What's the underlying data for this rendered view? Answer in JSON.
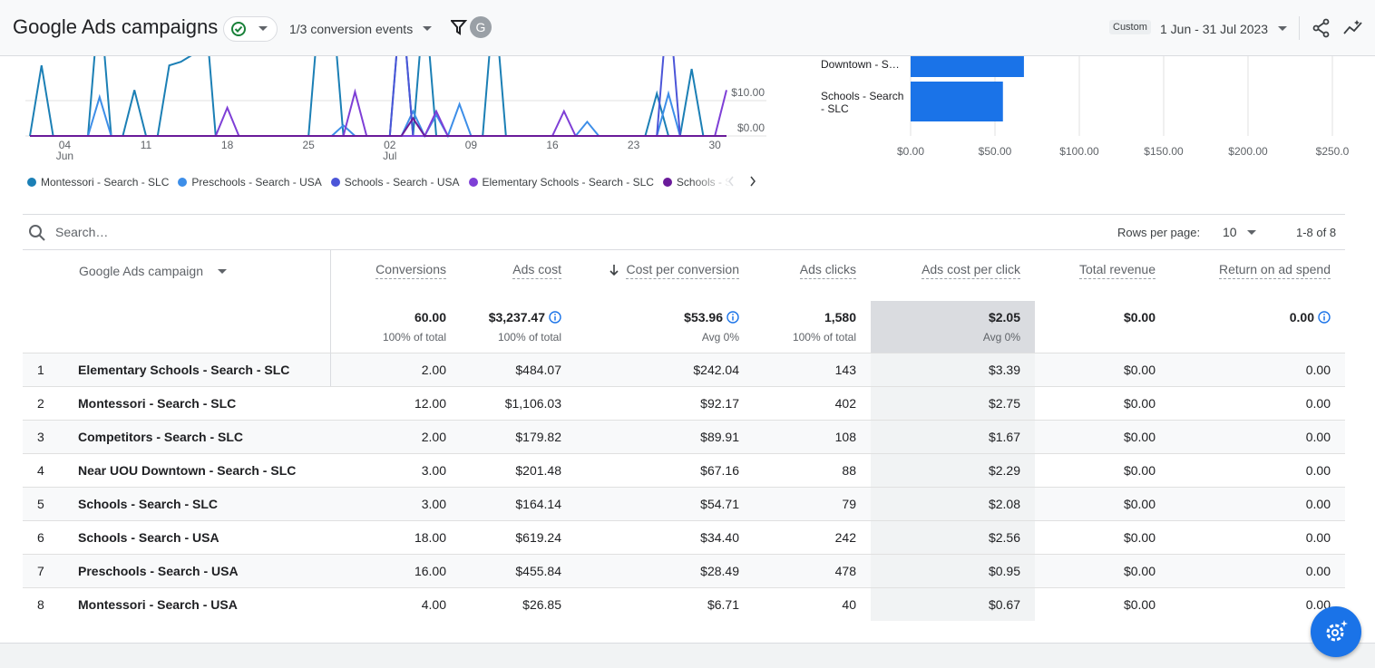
{
  "header": {
    "title": "Google Ads campaigns",
    "conversion_events": "1/3 conversion events",
    "avatar": "G",
    "date_label": "Custom",
    "date_range": "1 Jun - 31 Jul 2023"
  },
  "chart_data": [
    {
      "type": "line",
      "categories": [
        null,
        null,
        null,
        "04\nJun",
        null,
        null,
        null,
        null,
        null,
        null,
        "11",
        null,
        null,
        null,
        null,
        null,
        null,
        "18",
        null,
        null,
        null,
        null,
        null,
        null,
        "25",
        null,
        null,
        null,
        null,
        null,
        null,
        "02\nJul",
        null,
        null,
        null,
        null,
        null,
        null,
        "09",
        null,
        null,
        null,
        null,
        null,
        null,
        "16",
        null,
        null,
        null,
        null,
        null,
        null,
        "23",
        null,
        null,
        null,
        null,
        null,
        null,
        "30",
        null
      ],
      "ylim": [
        0,
        22.6
      ],
      "yticks": [
        {
          "value": 0,
          "label": "$0.00"
        },
        {
          "value": 10,
          "label": "$10.00"
        }
      ],
      "grid": true,
      "series": [
        {
          "name": "Montessori - Search - SLC",
          "color": "#1b7fb5",
          "values": [
            0,
            20,
            0,
            0,
            0,
            0,
            40,
            0,
            0,
            13,
            0,
            0,
            20,
            21,
            23,
            40,
            0,
            0,
            0,
            0,
            0,
            0,
            0,
            0,
            0,
            40,
            40,
            0,
            0,
            0,
            0,
            0,
            40,
            0,
            40,
            0,
            0,
            0,
            0,
            0,
            40,
            0,
            0,
            0,
            0,
            0,
            0,
            0,
            0,
            0,
            0,
            0,
            0,
            0,
            12,
            0,
            0,
            19,
            0,
            0,
            0
          ]
        },
        {
          "name": "Preschools - Search - USA",
          "color": "#3d8ee8",
          "values": [
            0,
            0,
            0,
            0,
            0,
            0,
            11,
            0,
            0,
            0,
            0,
            0,
            0,
            0,
            0,
            0,
            0,
            0,
            0,
            0,
            0,
            0,
            0,
            0,
            0,
            0,
            0,
            3,
            0,
            0,
            0,
            0,
            0,
            7,
            0,
            6,
            0,
            9,
            0,
            0,
            0,
            0,
            0,
            0,
            0,
            0,
            0,
            0,
            4,
            0,
            0,
            0,
            0,
            0,
            0,
            12,
            0,
            0,
            0,
            0,
            0
          ]
        },
        {
          "name": "Schools - Search - USA",
          "color": "#4b55d8",
          "values": [
            0,
            0,
            0,
            0,
            0,
            0,
            0,
            0,
            0,
            0,
            0,
            0,
            0,
            0,
            0,
            0,
            0,
            0,
            0,
            0,
            0,
            0,
            0,
            0,
            0,
            0,
            0,
            0,
            0,
            0,
            0,
            0,
            40,
            0,
            0,
            0,
            0,
            0,
            0,
            0,
            0,
            0,
            0,
            0,
            0,
            0,
            0,
            0,
            0,
            0,
            0,
            0,
            0,
            0,
            0,
            40,
            0,
            0,
            0,
            0,
            0
          ]
        },
        {
          "name": "Elementary Schools - Search - SLC",
          "color": "#7e3fd6",
          "values": [
            0,
            0,
            0,
            0,
            0,
            0,
            0,
            0,
            0,
            0,
            0,
            0,
            0,
            0,
            0,
            0,
            0,
            8,
            0,
            0,
            0,
            0,
            0,
            0,
            0,
            0,
            0,
            0,
            12.5,
            0,
            0,
            0,
            0,
            0,
            0,
            7,
            0,
            0,
            0,
            0,
            0,
            0,
            0,
            0,
            0,
            0,
            7,
            0,
            0,
            0,
            0,
            0,
            0,
            0,
            0,
            0,
            0,
            0,
            0,
            0,
            13
          ]
        },
        {
          "name": "Schools - Search - SLC",
          "color": "#6a1b9a",
          "values": [
            0,
            0,
            0,
            0,
            0,
            0,
            0,
            0,
            0,
            0,
            0,
            0,
            0,
            0,
            0,
            0,
            0,
            0,
            0,
            0,
            0,
            0,
            0,
            0,
            0,
            0,
            0,
            0,
            0,
            0,
            0,
            0,
            0,
            5,
            0,
            0,
            0,
            0,
            0,
            0,
            0,
            0,
            0,
            0,
            0,
            0,
            0,
            0,
            0,
            0,
            0,
            0,
            0,
            0,
            0,
            0,
            0,
            0,
            0,
            0,
            0
          ]
        }
      ]
    },
    {
      "type": "bar",
      "orientation": "horizontal",
      "categories": [
        "Downtown - S…",
        "Schools - Search - SLC"
      ],
      "values": [
        67.16,
        54.71
      ],
      "color": "#1a73e8",
      "xlim": [
        0,
        258.6
      ],
      "xticks": [
        {
          "value": 0,
          "label": "$0.00"
        },
        {
          "value": 50,
          "label": "$50.00"
        },
        {
          "value": 100,
          "label": "$100.00"
        },
        {
          "value": 150,
          "label": "$150.00"
        },
        {
          "value": 200,
          "label": "$200.00"
        },
        {
          "value": 250,
          "label": "$250.0"
        }
      ],
      "grid": true
    }
  ],
  "table": {
    "search_placeholder": "Search…",
    "rows_per_page_label": "Rows per page:",
    "rows_per_page": "10",
    "pagination": "1-8 of 8",
    "dimension": "Google Ads campaign",
    "columns": [
      "Conversions",
      "Ads cost",
      "Cost per conversion",
      "Ads clicks",
      "Ads cost per click",
      "Total revenue",
      "Return on ad spend"
    ],
    "totals": [
      {
        "value": "60.00",
        "note": "100% of total"
      },
      {
        "value": "$3,237.47",
        "note": "100% of total"
      },
      {
        "value": "$53.96",
        "note": "Avg 0%"
      },
      {
        "value": "1,580",
        "note": "100% of total"
      },
      {
        "value": "$2.05",
        "note": "Avg 0%"
      },
      {
        "value": "$0.00"
      },
      {
        "value": "0.00"
      }
    ],
    "rows": [
      [
        "1",
        "Elementary Schools - Search - SLC",
        "2.00",
        "$484.07",
        "$242.04",
        "143",
        "$3.39",
        "$0.00",
        "0.00"
      ],
      [
        "2",
        "Montessori - Search - SLC",
        "12.00",
        "$1,106.03",
        "$92.17",
        "402",
        "$2.75",
        "$0.00",
        "0.00"
      ],
      [
        "3",
        "Competitors - Search - SLC",
        "2.00",
        "$179.82",
        "$89.91",
        "108",
        "$1.67",
        "$0.00",
        "0.00"
      ],
      [
        "4",
        "Near UOU Downtown - Search - SLC",
        "3.00",
        "$201.48",
        "$67.16",
        "88",
        "$2.29",
        "$0.00",
        "0.00"
      ],
      [
        "5",
        "Schools - Search - SLC",
        "3.00",
        "$164.14",
        "$54.71",
        "79",
        "$2.08",
        "$0.00",
        "0.00"
      ],
      [
        "6",
        "Schools - Search - USA",
        "18.00",
        "$619.24",
        "$34.40",
        "242",
        "$2.56",
        "$0.00",
        "0.00"
      ],
      [
        "7",
        "Preschools - Search - USA",
        "16.00",
        "$455.84",
        "$28.49",
        "478",
        "$0.95",
        "$0.00",
        "0.00"
      ],
      [
        "8",
        "Montessori - Search - USA",
        "4.00",
        "$26.85",
        "$6.71",
        "40",
        "$0.67",
        "$0.00",
        "0.00"
      ]
    ]
  }
}
